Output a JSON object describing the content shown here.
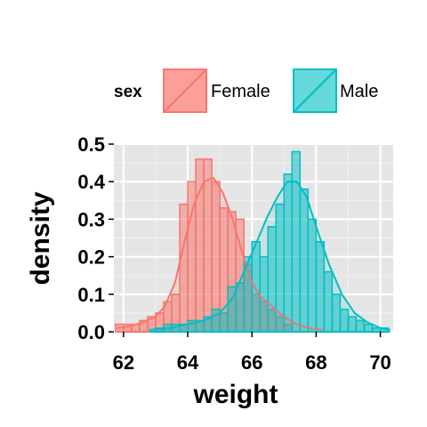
{
  "chart_data": {
    "type": "bar",
    "xlabel": "weight",
    "ylabel": "density",
    "xlim": [
      61.7,
      70.4
    ],
    "ylim": [
      0,
      0.5
    ],
    "x_ticks": [
      "62",
      "64",
      "66",
      "68",
      "70"
    ],
    "y_ticks": [
      "0.0",
      "0.1",
      "0.2",
      "0.3",
      "0.4",
      "0.5"
    ],
    "grid": true,
    "legend": {
      "title": "sex",
      "position": "top",
      "items": [
        "Female",
        "Male"
      ]
    },
    "bin_width": 0.25,
    "series": [
      {
        "name": "Female",
        "color": "#F8766D",
        "bin_starts": [
          61.75,
          62.0,
          62.25,
          62.5,
          62.75,
          63.0,
          63.25,
          63.5,
          63.75,
          64.0,
          64.25,
          64.5,
          64.75,
          65.0,
          65.25,
          65.5,
          65.75,
          66.0,
          66.25,
          66.5,
          66.75,
          67.0
        ],
        "density": [
          0.02,
          0.02,
          0.02,
          0.03,
          0.04,
          0.05,
          0.08,
          0.1,
          0.34,
          0.4,
          0.46,
          0.46,
          0.4,
          0.33,
          0.32,
          0.3,
          0.18,
          0.1,
          0.08,
          0.06,
          0.04,
          0.02
        ],
        "curve": {
          "x": [
            61.8,
            62.2,
            62.6,
            63.0,
            63.3,
            63.6,
            63.9,
            64.2,
            64.5,
            64.8,
            65.1,
            65.4,
            65.7,
            66.0,
            66.3,
            66.6,
            67.0,
            67.4,
            67.8,
            68.2
          ],
          "y": [
            0.01,
            0.015,
            0.025,
            0.04,
            0.07,
            0.13,
            0.24,
            0.34,
            0.4,
            0.41,
            0.37,
            0.3,
            0.21,
            0.13,
            0.09,
            0.07,
            0.04,
            0.02,
            0.01,
            0.005
          ]
        }
      },
      {
        "name": "Male",
        "color": "#00BFC4",
        "bin_starts": [
          63.0,
          63.25,
          63.5,
          63.75,
          64.0,
          64.25,
          64.5,
          64.75,
          65.0,
          65.25,
          65.5,
          65.75,
          66.0,
          66.25,
          66.5,
          66.75,
          67.0,
          67.25,
          67.5,
          67.75,
          68.0,
          68.25,
          68.5,
          68.75,
          69.0,
          69.25,
          69.5,
          69.75,
          70.0
        ],
        "density": [
          0.01,
          0.02,
          0.02,
          0.02,
          0.03,
          0.03,
          0.04,
          0.06,
          0.05,
          0.12,
          0.13,
          0.2,
          0.24,
          0.2,
          0.28,
          0.34,
          0.42,
          0.48,
          0.38,
          0.3,
          0.24,
          0.16,
          0.1,
          0.06,
          0.04,
          0.03,
          0.02,
          0.01,
          0.01
        ],
        "curve": {
          "x": [
            62.8,
            63.4,
            64.0,
            64.5,
            65.0,
            65.4,
            65.8,
            66.2,
            66.5,
            66.8,
            67.1,
            67.4,
            67.7,
            68.0,
            68.4,
            68.8,
            69.2,
            69.6,
            70.0,
            70.3
          ],
          "y": [
            0.005,
            0.01,
            0.02,
            0.03,
            0.05,
            0.09,
            0.17,
            0.25,
            0.31,
            0.36,
            0.4,
            0.4,
            0.36,
            0.28,
            0.18,
            0.1,
            0.05,
            0.025,
            0.01,
            0.005
          ]
        }
      }
    ]
  }
}
